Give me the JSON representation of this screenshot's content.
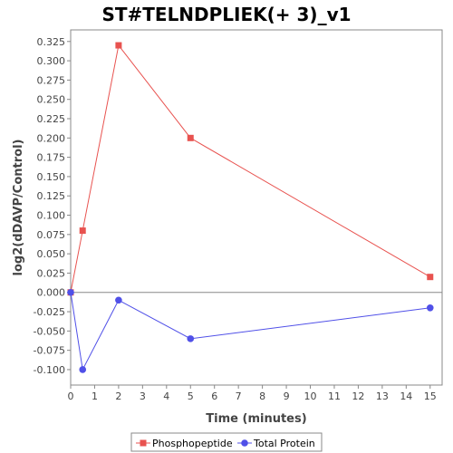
{
  "chart_data": {
    "type": "line",
    "title": "ST#TELNDPLIEK(+ 3)_v1",
    "xlabel": "Time (minutes)",
    "ylabel": "log2(dDAVP/Control)",
    "xlim": [
      0,
      15.5
    ],
    "ylim": [
      -0.12,
      0.34
    ],
    "x_ticks": [
      0,
      1,
      2,
      3,
      4,
      5,
      6,
      7,
      8,
      9,
      10,
      11,
      12,
      13,
      14,
      15
    ],
    "y_ticks": [
      -0.1,
      -0.075,
      -0.05,
      -0.025,
      0.0,
      0.025,
      0.05,
      0.075,
      0.1,
      0.125,
      0.15,
      0.175,
      0.2,
      0.225,
      0.25,
      0.275,
      0.3,
      0.325
    ],
    "y_tick_labels": [
      "-0.100",
      "-0.075",
      "-0.050",
      "-0.025",
      "0.000",
      "0.025",
      "0.050",
      "0.075",
      "0.100",
      "0.125",
      "0.150",
      "0.175",
      "0.200",
      "0.225",
      "0.250",
      "0.275",
      "0.300",
      "0.325"
    ],
    "zero_line": true,
    "grid": false,
    "legend_position": "bottom",
    "series": [
      {
        "name": "Phosphopeptide",
        "color": "#e8524f",
        "marker": "square",
        "x": [
          0,
          0.5,
          2,
          5,
          15
        ],
        "y": [
          0.0,
          0.08,
          0.32,
          0.2,
          0.02
        ]
      },
      {
        "name": "Total Protein",
        "color": "#5050e8",
        "marker": "circle",
        "x": [
          0,
          0.5,
          2,
          5,
          15
        ],
        "y": [
          0.0,
          -0.1,
          -0.01,
          -0.06,
          -0.02
        ]
      }
    ]
  }
}
